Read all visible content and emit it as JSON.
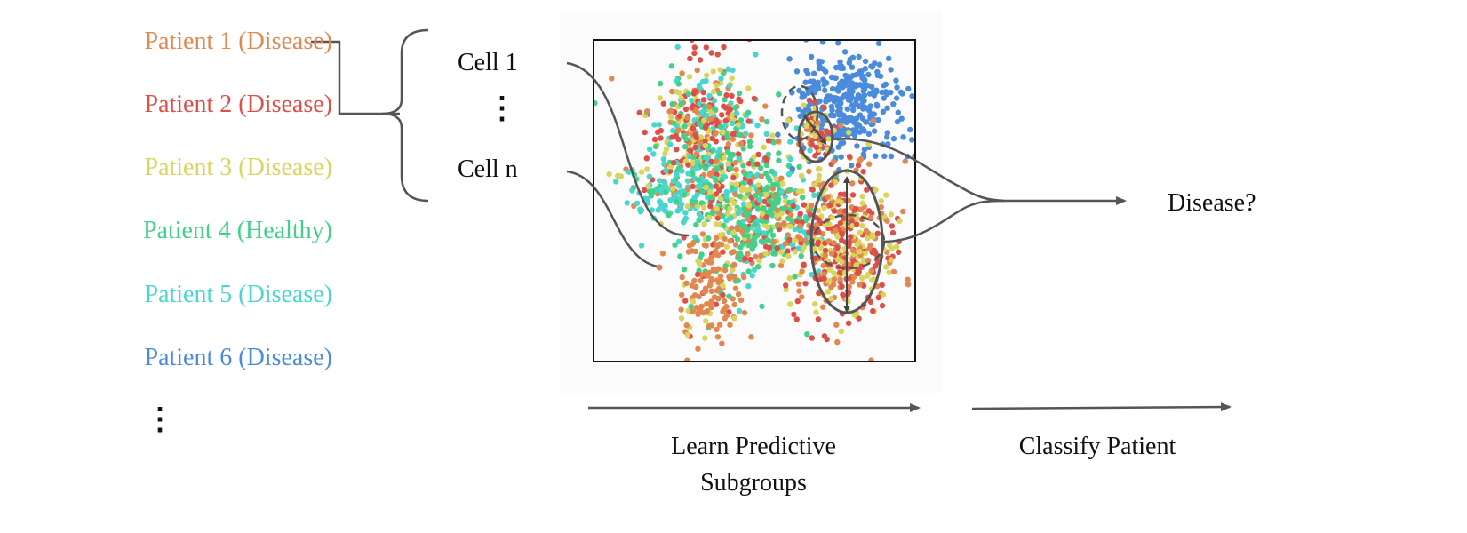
{
  "patients": [
    {
      "label": "Patient 1 (Disease)",
      "color": "#E08850"
    },
    {
      "label": "Patient 2 (Disease)",
      "color": "#DD4F4A"
    },
    {
      "label": "Patient 3 (Disease)",
      "color": "#D9D55A"
    },
    {
      "label": "Patient 4 (Healthy)",
      "color": "#43D18A"
    },
    {
      "label": "Patient 5 (Disease)",
      "color": "#48D6CE"
    },
    {
      "label": "Patient 6 (Disease)",
      "color": "#4A8BDB"
    }
  ],
  "patients_more": "⋮",
  "cells": {
    "first": "Cell 1",
    "ellipsis": "⋮",
    "last": "Cell n"
  },
  "output_label": "Disease?",
  "steps": {
    "learn": "Learn Predictive Subgroups",
    "classify": "Classify Patient"
  },
  "icons": {
    "more": "vertical-ellipsis"
  }
}
